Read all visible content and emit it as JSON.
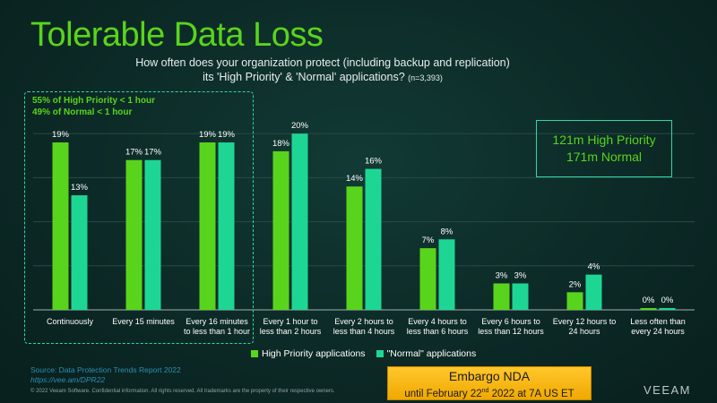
{
  "title": "Tolerable Data Loss",
  "subtitle_line1": "How often does your organization protect (including backup and replication)",
  "subtitle_line2": "its 'High Priority' & 'Normal' applications?",
  "subtitle_n": "(n=3,393)",
  "highlight": {
    "line1": "55% of High Priority < 1 hour",
    "line2": "49% of Normal < 1 hour"
  },
  "callout": {
    "line1": "121m High Priority",
    "line2": "171m Normal"
  },
  "legend": {
    "high": "High Priority applications",
    "normal": "\"Normal\" applications"
  },
  "source": {
    "prefix": "Source: ",
    "name": "Data Protection Trends Report 2022",
    "url": "https://vee.am/DPR22"
  },
  "copyright": "© 2022 Veeam Software. Confidential information. All rights reserved. All trademarks are the property of their respective owners.",
  "embargo": {
    "line1": "Embargo NDA",
    "line2_pre": "until February 22",
    "line2_sup": "nd",
    "line2_post": " 2022 at 7A US ET"
  },
  "logo": "VEEAM",
  "colors": {
    "high": "#59d41c",
    "normal": "#1ed694",
    "accent": "#2fd9a2"
  },
  "chart_data": {
    "type": "bar",
    "categories": [
      [
        "Continuously"
      ],
      [
        "Every  15 minutes"
      ],
      [
        "Every  16 minutes",
        "to less than 1 hour"
      ],
      [
        "Every  1 hour to",
        "less than 2 hours"
      ],
      [
        "Every  2 hours to",
        "less than 4 hours"
      ],
      [
        "Every  4 hours to",
        "less than 6 hours"
      ],
      [
        "Every  6 hours to",
        "less than 12 hours"
      ],
      [
        "Every  12 hours to",
        "24 hours"
      ],
      [
        "Less  often than",
        "every 24 hours"
      ]
    ],
    "series": [
      {
        "name": "High Priority applications",
        "values": [
          19,
          17,
          19,
          18,
          14,
          7,
          3,
          2,
          0
        ]
      },
      {
        "name": "\"Normal\" applications",
        "values": [
          13,
          17,
          19,
          20,
          16,
          8,
          3,
          4,
          0
        ]
      }
    ],
    "ylim": [
      0,
      25
    ],
    "grid": true,
    "legend_position": "bottom"
  }
}
